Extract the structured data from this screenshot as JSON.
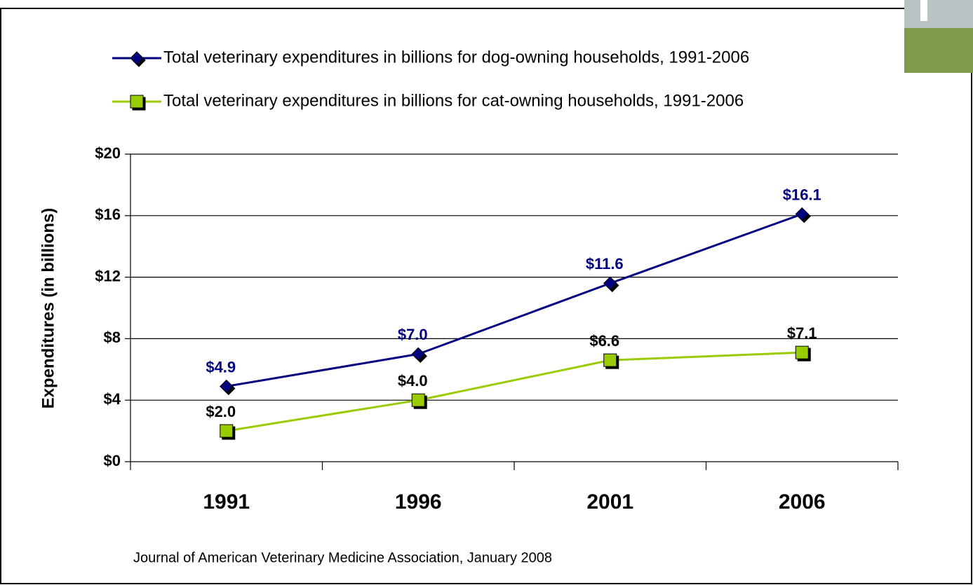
{
  "chart_data": {
    "type": "line",
    "y_label": "Expenditures (in billions)",
    "source": "Journal of American Veterinary Medicine Association, January 2008",
    "categories": [
      "1991",
      "1996",
      "2001",
      "2006"
    ],
    "series": [
      {
        "name": "Total veterinary expenditures in billions for dog-owning households, 1991-2006",
        "color": "#000080",
        "marker": "diamond",
        "label_color": "#000080",
        "values": [
          4.9,
          7.0,
          11.6,
          16.1
        ],
        "value_labels": [
          "$4.9",
          "$7.0",
          "$11.6",
          "$16.1"
        ]
      },
      {
        "name": "Total veterinary expenditures in billions for cat-owning households, 1991-2006",
        "color": "#99cc00",
        "marker": "square",
        "label_color": "#000000",
        "values": [
          2.0,
          4.0,
          6.6,
          7.1
        ],
        "value_labels": [
          "$2.0",
          "$4.0",
          "$6.6",
          "$7.1"
        ]
      }
    ],
    "ylim": [
      0,
      20
    ],
    "yticks": [
      {
        "value": 0,
        "label": "$0"
      },
      {
        "value": 4,
        "label": "$4"
      },
      {
        "value": 8,
        "label": "$8"
      },
      {
        "value": 12,
        "label": "$12"
      },
      {
        "value": 16,
        "label": "$16"
      },
      {
        "value": 20,
        "label": "$20"
      }
    ],
    "grid": true,
    "legend": "top"
  }
}
